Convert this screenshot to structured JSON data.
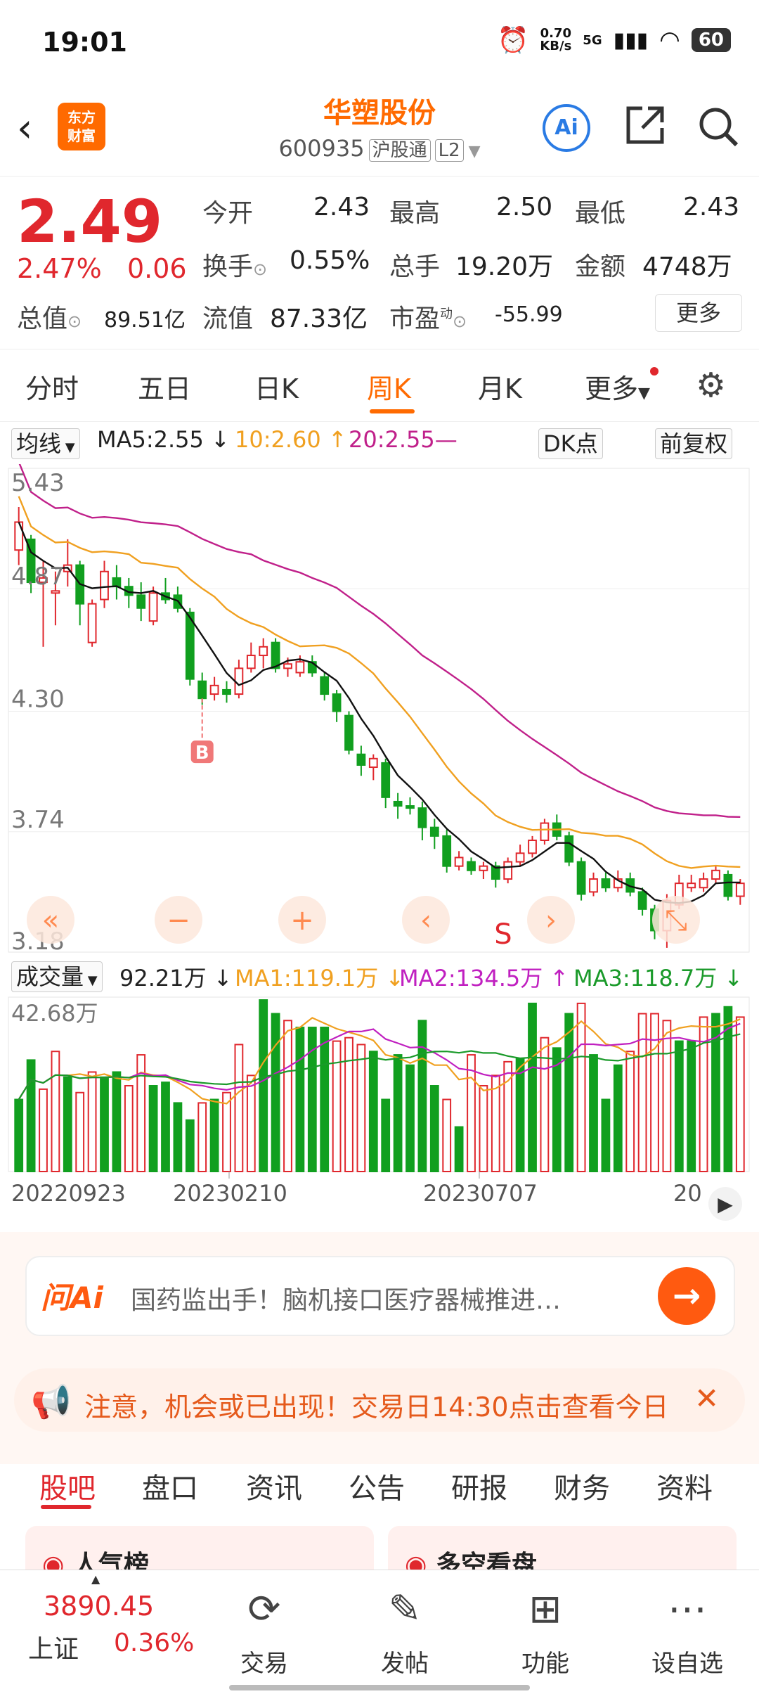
{
  "status": {
    "time": "19:01",
    "net_speed": "0.70",
    "net_unit": "KB/s",
    "signal": "5G",
    "battery": "60"
  },
  "header": {
    "logo_line1": "东方",
    "logo_line2": "财富",
    "stock_name": "华塑股份",
    "stock_code": "600935",
    "tag1": "沪股通",
    "tag2": "L2"
  },
  "quote": {
    "price": "2.49",
    "pct": "2.47%",
    "change": "0.06",
    "open_label": "今开",
    "open": "2.43",
    "high_label": "最高",
    "high": "2.50",
    "low_label": "最低",
    "low": "2.43",
    "turnover_label": "换手",
    "turnover": "0.55%",
    "volume_label": "总手",
    "volume": "19.20万",
    "amount_label": "金额",
    "amount": "4748万",
    "mktcap_label": "总值",
    "mktcap": "89.51亿",
    "float_label": "流值",
    "float": "87.33亿",
    "pe_label": "市盈",
    "pe_sup": "动",
    "pe": "-55.99",
    "more": "更多"
  },
  "tabs": [
    {
      "label": "分时"
    },
    {
      "label": "五日"
    },
    {
      "label": "日K"
    },
    {
      "label": "周K"
    },
    {
      "label": "月K"
    },
    {
      "label": "更多"
    }
  ],
  "indicator": {
    "ma_label": "均线",
    "ma5": "MA5:2.55 ↓",
    "ma10": "10:2.60 ↑",
    "ma20": "20:2.55—",
    "dk": "DK点",
    "fq": "前复权",
    "vol_label": "成交量",
    "vol": "92.21万 ↓",
    "vma1": "MA1:119.1万 ↓",
    "vma2": "MA2:134.5万 ↑",
    "vma3": "MA3:118.7万 ↓"
  },
  "chart_data": {
    "type": "candlestick",
    "y_ticks": [
      "5.43",
      "4.87",
      "4.30",
      "3.74",
      "3.18"
    ],
    "ylim": [
      3.18,
      5.43
    ],
    "vol_tick": "42.68万",
    "x_ticks": [
      "20220923",
      "20230210",
      "20230707",
      "20"
    ],
    "markers": [
      "B",
      "S"
    ],
    "colors": {
      "up": "#e0272d",
      "down": "#119f1f",
      "ma5": "#111111",
      "ma10": "#f0a020",
      "ma20": "#c0208a"
    },
    "candles": [
      [
        5.05,
        5.18,
        5.25,
        4.98
      ],
      [
        5.1,
        4.9,
        5.12,
        4.85
      ],
      [
        4.9,
        4.92,
        5.0,
        4.6
      ],
      [
        4.85,
        4.86,
        4.95,
        4.7
      ],
      [
        4.95,
        4.98,
        5.1,
        4.88
      ],
      [
        4.98,
        4.8,
        5.0,
        4.7
      ],
      [
        4.62,
        4.8,
        4.82,
        4.6
      ],
      [
        4.82,
        4.95,
        5.0,
        4.78
      ],
      [
        4.92,
        4.88,
        4.98,
        4.82
      ],
      [
        4.88,
        4.84,
        4.92,
        4.78
      ],
      [
        4.84,
        4.78,
        4.9,
        4.72
      ],
      [
        4.72,
        4.85,
        4.88,
        4.7
      ],
      [
        4.85,
        4.82,
        4.92,
        4.8
      ],
      [
        4.84,
        4.78,
        4.88,
        4.76
      ],
      [
        4.76,
        4.45,
        4.78,
        4.42
      ],
      [
        4.44,
        4.36,
        4.48,
        4.33
      ],
      [
        4.38,
        4.42,
        4.46,
        4.35
      ],
      [
        4.4,
        4.38,
        4.44,
        4.34
      ],
      [
        4.38,
        4.5,
        4.54,
        4.36
      ],
      [
        4.5,
        4.56,
        4.62,
        4.48
      ],
      [
        4.56,
        4.6,
        4.64,
        4.5
      ],
      [
        4.62,
        4.5,
        4.64,
        4.48
      ],
      [
        4.5,
        4.52,
        4.55,
        4.46
      ],
      [
        4.48,
        4.53,
        4.56,
        4.46
      ],
      [
        4.53,
        4.48,
        4.56,
        4.46
      ],
      [
        4.46,
        4.38,
        4.48,
        4.35
      ],
      [
        4.38,
        4.3,
        4.4,
        4.25
      ],
      [
        4.28,
        4.12,
        4.3,
        4.1
      ],
      [
        4.1,
        4.05,
        4.14,
        4.0
      ],
      [
        4.04,
        4.08,
        4.1,
        3.98
      ],
      [
        4.06,
        3.9,
        4.08,
        3.85
      ],
      [
        3.88,
        3.86,
        3.92,
        3.8
      ],
      [
        3.86,
        3.85,
        3.9,
        3.82
      ],
      [
        3.85,
        3.76,
        3.88,
        3.7
      ],
      [
        3.76,
        3.72,
        3.8,
        3.66
      ],
      [
        3.72,
        3.58,
        3.75,
        3.55
      ],
      [
        3.58,
        3.62,
        3.65,
        3.56
      ],
      [
        3.6,
        3.56,
        3.62,
        3.54
      ],
      [
        3.56,
        3.58,
        3.6,
        3.52
      ],
      [
        3.58,
        3.52,
        3.6,
        3.48
      ],
      [
        3.52,
        3.6,
        3.62,
        3.5
      ],
      [
        3.6,
        3.64,
        3.68,
        3.58
      ],
      [
        3.64,
        3.7,
        3.72,
        3.62
      ],
      [
        3.7,
        3.78,
        3.8,
        3.68
      ],
      [
        3.78,
        3.72,
        3.82,
        3.7
      ],
      [
        3.72,
        3.6,
        3.74,
        3.58
      ],
      [
        3.6,
        3.45,
        3.62,
        3.42
      ],
      [
        3.46,
        3.52,
        3.55,
        3.44
      ],
      [
        3.52,
        3.48,
        3.55,
        3.46
      ],
      [
        3.48,
        3.52,
        3.56,
        3.46
      ],
      [
        3.52,
        3.46,
        3.55,
        3.44
      ],
      [
        3.46,
        3.38,
        3.48,
        3.35
      ],
      [
        3.38,
        3.28,
        3.4,
        3.24
      ],
      [
        3.28,
        3.42,
        3.45,
        3.2
      ],
      [
        3.4,
        3.5,
        3.54,
        3.38
      ],
      [
        3.48,
        3.5,
        3.54,
        3.46
      ],
      [
        3.48,
        3.52,
        3.55,
        3.46
      ],
      [
        3.52,
        3.56,
        3.58,
        3.5
      ],
      [
        3.54,
        3.44,
        3.56,
        3.42
      ],
      [
        3.44,
        3.5,
        3.52,
        3.4
      ]
    ],
    "volume": [
      [
        0.42,
        0
      ],
      [
        0.65,
        0
      ],
      [
        0.48,
        1
      ],
      [
        0.7,
        1
      ],
      [
        0.55,
        0
      ],
      [
        0.46,
        1
      ],
      [
        0.58,
        1
      ],
      [
        0.55,
        0
      ],
      [
        0.58,
        0
      ],
      [
        0.5,
        1
      ],
      [
        0.68,
        1
      ],
      [
        0.5,
        0
      ],
      [
        0.52,
        0
      ],
      [
        0.4,
        0
      ],
      [
        0.3,
        0
      ],
      [
        0.4,
        1
      ],
      [
        0.42,
        0
      ],
      [
        0.46,
        1
      ],
      [
        0.74,
        1
      ],
      [
        0.56,
        1
      ],
      [
        1.0,
        0
      ],
      [
        0.92,
        0
      ],
      [
        0.88,
        1
      ],
      [
        0.84,
        0
      ],
      [
        0.84,
        0
      ],
      [
        0.84,
        0
      ],
      [
        0.76,
        1
      ],
      [
        0.78,
        1
      ],
      [
        0.74,
        1
      ],
      [
        0.7,
        0
      ],
      [
        0.42,
        0
      ],
      [
        0.68,
        0
      ],
      [
        0.62,
        0
      ],
      [
        0.88,
        0
      ],
      [
        0.5,
        0
      ],
      [
        0.42,
        1
      ],
      [
        0.26,
        0
      ],
      [
        0.68,
        1
      ],
      [
        0.5,
        1
      ],
      [
        0.56,
        1
      ],
      [
        0.64,
        1
      ],
      [
        0.66,
        0
      ],
      [
        0.98,
        0
      ],
      [
        0.78,
        1
      ],
      [
        0.72,
        0
      ],
      [
        0.92,
        0
      ],
      [
        0.98,
        1
      ],
      [
        0.68,
        0
      ],
      [
        0.42,
        0
      ],
      [
        0.62,
        0
      ],
      [
        0.7,
        1
      ],
      [
        0.92,
        1
      ],
      [
        0.92,
        1
      ],
      [
        0.88,
        1
      ],
      [
        0.76,
        0
      ],
      [
        0.76,
        0
      ],
      [
        0.9,
        1
      ],
      [
        0.92,
        0
      ],
      [
        0.96,
        0
      ],
      [
        0.9,
        1
      ]
    ]
  },
  "ai_bar": {
    "label": "问Ai",
    "text": "国药监出手！脑机接口医疗器械推进…",
    "go": "→"
  },
  "notice": {
    "text": "注意，机会或已出现！交易日14:30点击查看今日",
    "close": "✕"
  },
  "bottom_tabs": [
    {
      "label": "股吧"
    },
    {
      "label": "盘口"
    },
    {
      "label": "资讯"
    },
    {
      "label": "公告"
    },
    {
      "label": "研报"
    },
    {
      "label": "财务"
    },
    {
      "label": "资料"
    }
  ],
  "cards": {
    "c1": "人气榜",
    "c2": "多空看盘"
  },
  "footer": {
    "index_value": "3890.45",
    "index_name": "上证",
    "index_pct": "0.36%",
    "items": [
      {
        "label": "交易"
      },
      {
        "label": "发帖"
      },
      {
        "label": "功能"
      },
      {
        "label": "设自选"
      }
    ]
  }
}
